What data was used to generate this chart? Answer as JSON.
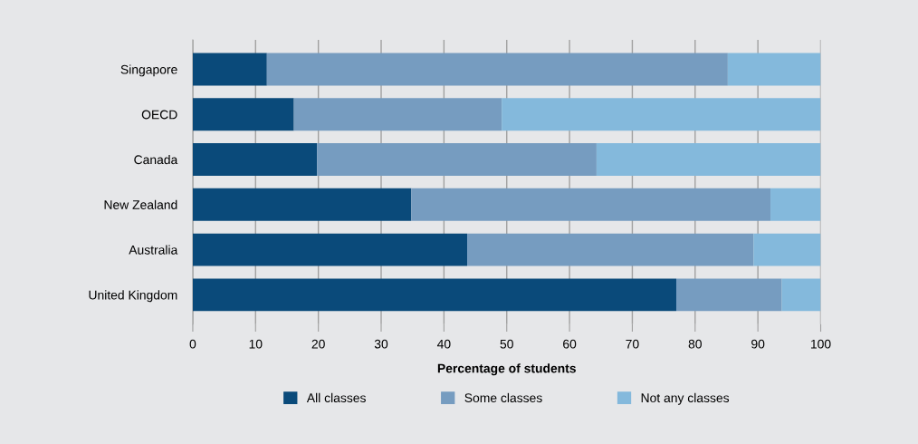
{
  "chart_data": {
    "type": "bar",
    "orientation": "horizontal",
    "stacked": true,
    "categories": [
      "Singapore",
      "OECD",
      "Canada",
      "New Zealand",
      "Australia",
      "United Kingdom"
    ],
    "series": [
      {
        "name": "All classes",
        "color": "#0a4a7a",
        "values": [
          11.8,
          16.1,
          19.8,
          34.8,
          43.7,
          77.0
        ]
      },
      {
        "name": "Some classes",
        "color": "#769cc0",
        "values": [
          73.4,
          33.1,
          44.5,
          57.2,
          45.6,
          16.8
        ]
      },
      {
        "name": "Not any classes",
        "color": "#84b9dc",
        "values": [
          14.8,
          50.8,
          35.7,
          8.0,
          10.7,
          6.2
        ]
      }
    ],
    "xlabel": "Percentage of students",
    "xlim": [
      0,
      100
    ],
    "xticks": [
      0,
      10,
      20,
      30,
      40,
      50,
      60,
      70,
      80,
      90,
      100
    ],
    "grid": "x",
    "legend": "bottom"
  }
}
